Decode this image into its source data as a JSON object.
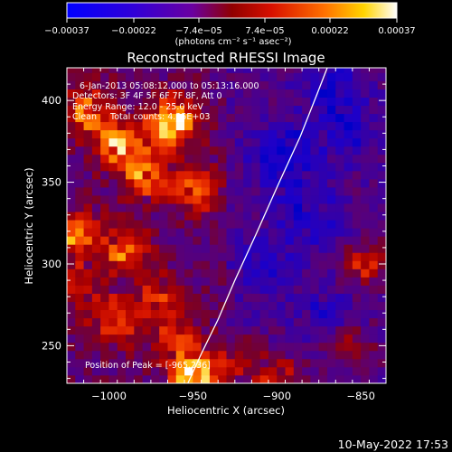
{
  "chart_data": {
    "type": "heatmap",
    "title": "Reconstructed RHESSI Image",
    "xlabel": "Heliocentric X (arcsec)",
    "ylabel": "Heliocentric Y (arcsec)",
    "xlim": [
      -1025,
      -835
    ],
    "ylim": [
      227,
      420
    ],
    "xticks": [
      -1000,
      -950,
      -900,
      -850
    ],
    "xtick_labels": [
      "−1000",
      "−950",
      "−900",
      "−850"
    ],
    "yticks": [
      250,
      300,
      350,
      400
    ],
    "ytick_labels": [
      "250",
      "300",
      "350",
      "400"
    ],
    "colorbar": {
      "range": [
        -0.00037,
        0.00037
      ],
      "ticks": [
        -0.00037,
        -0.00022,
        -7.4e-05,
        7.4e-05,
        0.00022,
        0.00037
      ],
      "tick_labels": [
        "−0.00037",
        "−0.00022",
        "−7.4e−05",
        "7.4e−05",
        "0.00022",
        "0.00037"
      ],
      "unit_label": "(photons cm⁻² s⁻¹ asec⁻²)",
      "colors": [
        "#0000ff",
        "#4b00a8",
        "#8a0000",
        "#e22000",
        "#ff9a00",
        "#ffffff"
      ]
    },
    "annotations": [
      "6-Jan-2013 05:08:12.000 to 05:13:16.000",
      "Detectors: 3F 4F 5F 6F 7F 8F, Att 0",
      "Energy Range: 12.0 - 25.0 keV",
      "Clean     Total counts: 4.35E+03"
    ],
    "peak_label": "Position of Peak = [-965,236]",
    "limb": {
      "x": [
        -953,
        -945,
        -935,
        -925,
        -912,
        -899,
        -886,
        -876,
        -870
      ],
      "y": [
        227,
        245,
        266,
        290,
        319,
        349,
        378,
        404,
        420
      ]
    },
    "hotspots": [
      {
        "x": -962,
        "y": 387,
        "amp": 1.0
      },
      {
        "x": -995,
        "y": 375,
        "amp": 0.72
      },
      {
        "x": -1012,
        "y": 395,
        "amp": 0.55
      },
      {
        "x": -978,
        "y": 356,
        "amp": 0.65
      },
      {
        "x": -949,
        "y": 345,
        "amp": 0.55
      },
      {
        "x": -1018,
        "y": 318,
        "amp": 0.6
      },
      {
        "x": -990,
        "y": 310,
        "amp": 0.55
      },
      {
        "x": -1020,
        "y": 285,
        "amp": 0.45
      },
      {
        "x": -970,
        "y": 280,
        "amp": 0.4
      },
      {
        "x": -995,
        "y": 265,
        "amp": 0.5
      },
      {
        "x": -950,
        "y": 230,
        "amp": 0.95
      },
      {
        "x": -960,
        "y": 255,
        "amp": 0.4
      },
      {
        "x": -925,
        "y": 240,
        "amp": 0.35
      },
      {
        "x": -848,
        "y": 300,
        "amp": 0.45
      },
      {
        "x": -858,
        "y": 250,
        "amp": 0.35
      },
      {
        "x": -900,
        "y": 230,
        "amp": 0.45
      }
    ],
    "coldspots": [
      {
        "x": -896,
        "y": 365,
        "amp": 0.8
      },
      {
        "x": -865,
        "y": 405,
        "amp": 0.6
      },
      {
        "x": -880,
        "y": 330,
        "amp": 0.55
      },
      {
        "x": -905,
        "y": 300,
        "amp": 0.45
      },
      {
        "x": -870,
        "y": 270,
        "amp": 0.4
      },
      {
        "x": -860,
        "y": 380,
        "amp": 0.5
      }
    ]
  },
  "footer": {
    "date_stamp": "10-May-2022 17:53"
  }
}
